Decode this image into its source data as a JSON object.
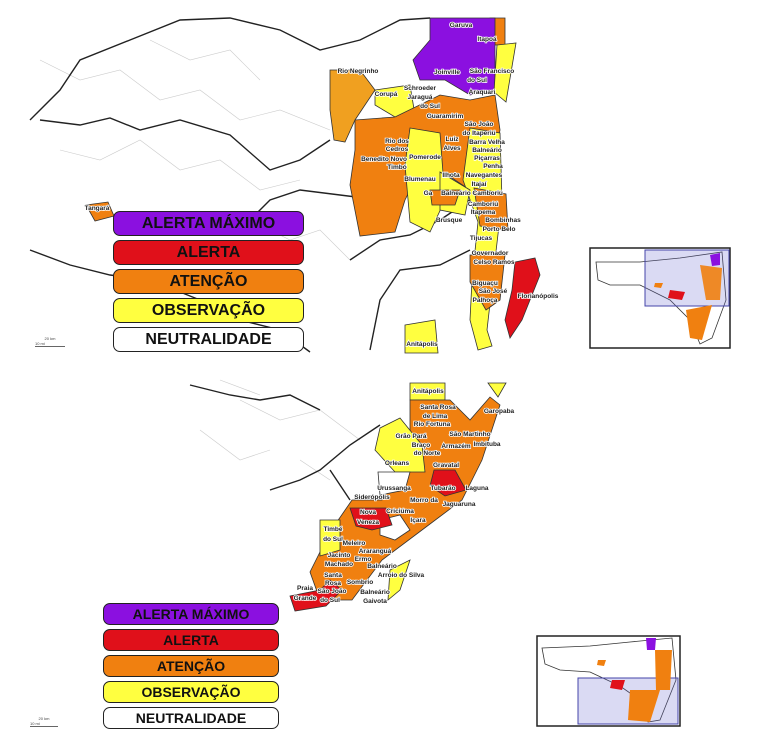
{
  "legend": {
    "levels": [
      {
        "label": "ALERTA MÁXIMO",
        "color": "#8b10e0"
      },
      {
        "label": "ALERTA",
        "color": "#e0101a"
      },
      {
        "label": "ATENÇÃO",
        "color": "#f08010"
      },
      {
        "label": "OBSERVAÇÃO",
        "color": "#ffff40"
      },
      {
        "label": "NEUTRALIDADE",
        "color": "#ffffff"
      }
    ]
  },
  "scale_bar": {
    "km": "20 km",
    "mi": "10 mi"
  },
  "top_map": {
    "labels": [
      "Garuva",
      "Itapoá",
      "Rio Negrinho",
      "Joinville",
      "São Francisco",
      "do Sul",
      "Corupá",
      "Schroeder",
      "Jaraguá",
      "Araquari",
      "do Sul",
      "Guaramirim",
      "São João",
      "do Itaperiú",
      "Rio dos",
      "Cedros",
      "Luiz",
      "Alves",
      "Barra Velha",
      "Balneário",
      "Benedito Novo",
      "Pomerode",
      "Piçarras",
      "Timbó",
      "Penha",
      "Blumenau",
      "Ilhota",
      "Navegantes",
      "Itajaí",
      "Ga",
      "Balneário Camboriú",
      "Camboriú",
      "Itapema",
      "Bombinhas",
      "Brusque",
      "Porto Belo",
      "Tijucas",
      "Governador",
      "Celso Ramos",
      "Biguaçu",
      "São José",
      "Palhoça",
      "Florianópolis",
      "Anitápolis",
      "Tangará"
    ]
  },
  "bottom_map": {
    "labels": [
      "Anitápolis",
      "Santa Rosa",
      "de Lima",
      "Garopaba",
      "Rio Fortuna",
      "São Martinho",
      "Grão Pará",
      "Imbituba",
      "Braço",
      "do Norte",
      "Armazém",
      "Orleans",
      "Gravatal",
      "Urussanga",
      "Tubarão",
      "Laguna",
      "Siderópolis",
      "Morro da",
      "Jaguaruna",
      "Nova",
      "Criciúma",
      "Içara",
      "Veneza",
      "Timbé",
      "do Sul",
      "Meleiro",
      "Araranguá",
      "Jacinto",
      "Ermo",
      "Machado",
      "Balneário",
      "Arroio do Silva",
      "Santa",
      "Rosa",
      "Sombrio",
      "Praia",
      "São João",
      "Balneário",
      "Grande",
      "do Sul",
      "Gaivota"
    ]
  }
}
